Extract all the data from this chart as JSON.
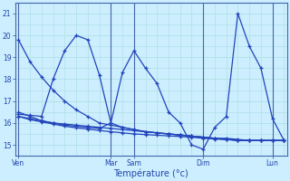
{
  "xlabel": "Température (°c)",
  "background_color": "#cceeff",
  "grid_color": "#aadddd",
  "line_color": "#2244bb",
  "yticks": [
    15,
    16,
    17,
    18,
    19,
    20,
    21
  ],
  "ylim": [
    14.5,
    21.5
  ],
  "day_labels": [
    "Ven",
    "Mar",
    "Sam",
    "Dim",
    "Lun"
  ],
  "day_x": [
    0,
    8,
    10,
    16,
    22
  ],
  "xlim": [
    -0.3,
    23.3
  ],
  "num_points": 24,
  "series": [
    [
      19.8,
      18.8,
      18.1,
      17.5,
      17.0,
      16.6,
      16.3,
      16.0,
      15.9,
      15.8,
      15.7,
      15.6,
      15.55,
      15.5,
      15.45,
      15.4,
      15.35,
      15.3,
      15.3,
      15.25,
      15.2,
      15.2,
      15.2,
      15.2
    ],
    [
      16.4,
      16.35,
      16.3,
      18.0,
      19.3,
      20.0,
      19.8,
      18.2,
      16.0,
      15.8,
      15.7,
      15.6,
      15.55,
      15.5,
      15.45,
      15.4,
      15.35,
      15.3,
      15.25,
      15.2,
      15.2,
      15.2,
      15.2,
      15.2
    ],
    [
      16.5,
      16.3,
      16.1,
      16.0,
      15.9,
      15.85,
      15.8,
      15.75,
      16.0,
      18.3,
      19.3,
      18.5,
      17.8,
      16.5,
      16.0,
      15.0,
      14.8,
      15.8,
      16.3,
      21.0,
      19.5,
      18.5,
      16.2,
      15.2
    ],
    [
      16.3,
      16.2,
      16.1,
      16.0,
      15.95,
      15.9,
      15.85,
      15.8,
      15.75,
      15.7,
      15.65,
      15.6,
      15.55,
      15.5,
      15.45,
      15.4,
      15.35,
      15.3,
      15.25,
      15.2,
      15.2,
      15.2,
      15.2,
      15.2
    ],
    [
      16.3,
      16.15,
      16.05,
      15.95,
      15.85,
      15.78,
      15.72,
      15.66,
      15.6,
      15.55,
      15.5,
      15.47,
      15.44,
      15.41,
      15.38,
      15.35,
      15.3,
      15.27,
      15.24,
      15.22,
      15.2,
      15.2,
      15.2,
      15.2
    ]
  ]
}
